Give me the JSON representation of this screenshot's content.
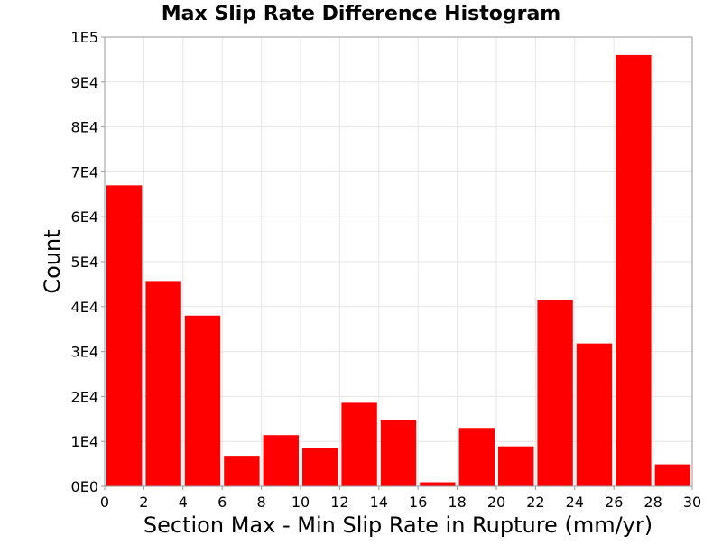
{
  "chart_data": {
    "type": "bar",
    "title": "Max Slip Rate Difference Histogram",
    "xlabel": "Section Max - Min Slip Rate in Rupture (mm/yr)",
    "ylabel": "Count",
    "xlim": [
      0,
      30
    ],
    "ylim": [
      0,
      100000
    ],
    "x_ticks": [
      "0",
      "2",
      "4",
      "6",
      "8",
      "10",
      "12",
      "14",
      "16",
      "18",
      "20",
      "22",
      "24",
      "26",
      "28",
      "30"
    ],
    "y_ticks": [
      "0E0",
      "1E4",
      "2E4",
      "3E4",
      "4E4",
      "5E4",
      "6E4",
      "7E4",
      "8E4",
      "9E4",
      "1E5"
    ],
    "bin_width": 2,
    "bins": [
      {
        "x": 1,
        "value": 67000
      },
      {
        "x": 3,
        "value": 45700
      },
      {
        "x": 5,
        "value": 38000
      },
      {
        "x": 7,
        "value": 6800
      },
      {
        "x": 9,
        "value": 11400
      },
      {
        "x": 11,
        "value": 8600
      },
      {
        "x": 13,
        "value": 18600
      },
      {
        "x": 15,
        "value": 14800
      },
      {
        "x": 17,
        "value": 900
      },
      {
        "x": 19,
        "value": 13000
      },
      {
        "x": 21,
        "value": 8900
      },
      {
        "x": 23,
        "value": 41500
      },
      {
        "x": 25,
        "value": 31800
      },
      {
        "x": 27,
        "value": 96000
      },
      {
        "x": 29,
        "value": 4900
      }
    ],
    "grid": true,
    "colors": {
      "bar": "#ff0000",
      "grid": "#e6e6e6",
      "axis": "#999999",
      "background": "#ffffff"
    }
  }
}
